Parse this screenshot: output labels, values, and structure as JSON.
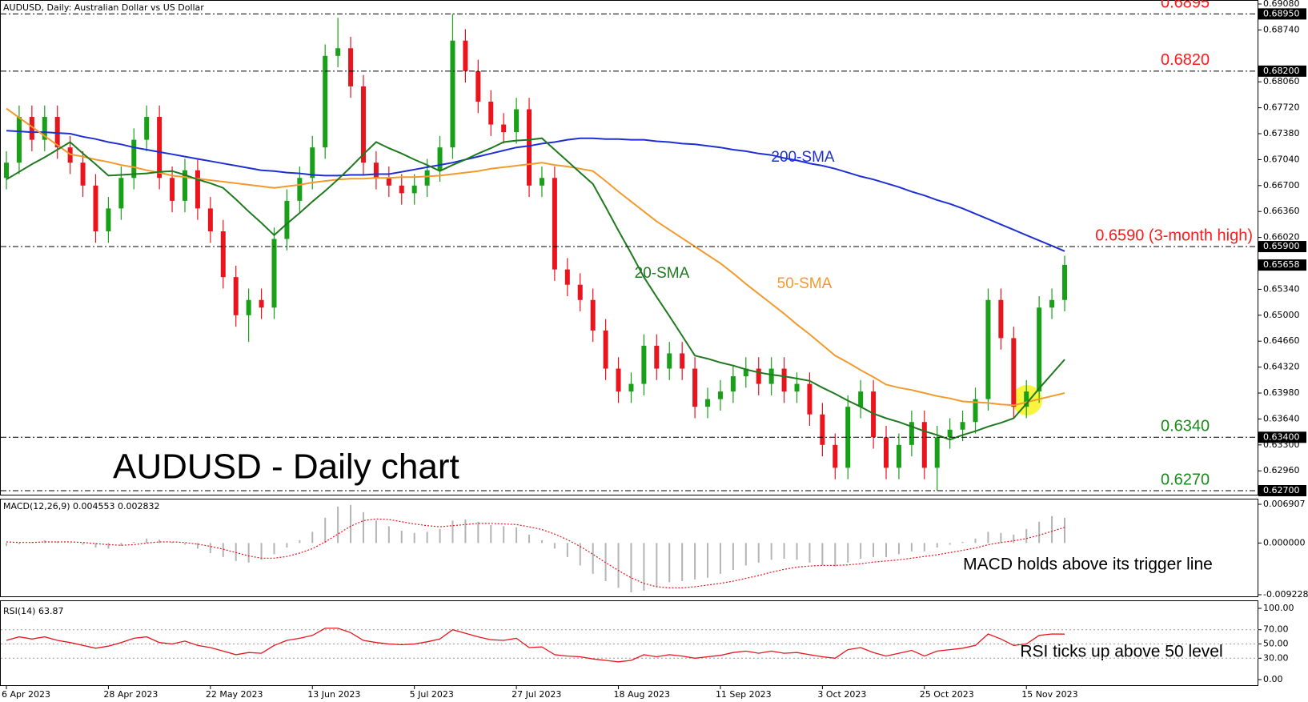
{
  "chart_data": [
    {
      "type": "candlestick",
      "title": "AUDUSD - Daily chart",
      "header": "AUDUSD, Daily:  Australian Dollar vs US Dollar",
      "categories": [
        "6 Apr 2023",
        null,
        null,
        null,
        null,
        null,
        null,
        null,
        "28 Apr 2023",
        null,
        null,
        null,
        null,
        null,
        null,
        null,
        "22 May 2023",
        null,
        null,
        null,
        null,
        null,
        null,
        null,
        "13 Jun 2023",
        null,
        null,
        null,
        null,
        null,
        null,
        null,
        "5 Jul 2023",
        null,
        null,
        null,
        null,
        null,
        null,
        null,
        "27 Jul 2023",
        null,
        null,
        null,
        null,
        null,
        null,
        null,
        "18 Aug 2023",
        null,
        null,
        null,
        null,
        null,
        null,
        null,
        "11 Sep 2023",
        null,
        null,
        null,
        null,
        null,
        null,
        null,
        "3 Oct 2023",
        null,
        null,
        null,
        null,
        null,
        null,
        null,
        "25 Oct 2023",
        null,
        null,
        null,
        null,
        null,
        null,
        null,
        "15 Nov 2023",
        null,
        null,
        null
      ],
      "open": [
        0.668,
        0.67,
        0.676,
        0.673,
        0.676,
        0.672,
        0.67,
        0.667,
        0.661,
        0.664,
        0.668,
        0.673,
        0.676,
        0.668,
        0.665,
        0.669,
        0.664,
        0.661,
        0.655,
        0.65,
        0.652,
        0.651,
        0.66,
        0.665,
        0.668,
        0.672,
        0.684,
        0.685,
        0.68,
        0.67,
        0.668,
        0.667,
        0.666,
        0.667,
        0.669,
        0.672,
        0.686,
        0.682,
        0.678,
        0.675,
        0.674,
        0.677,
        0.667,
        0.668,
        0.656,
        0.654,
        0.652,
        0.648,
        0.643,
        0.64,
        0.641,
        0.646,
        0.643,
        0.645,
        0.643,
        0.638,
        0.639,
        0.64,
        0.642,
        0.643,
        0.641,
        0.643,
        0.64,
        0.641,
        0.637,
        0.633,
        0.63,
        0.638,
        0.64,
        0.634,
        0.63,
        0.633,
        0.636,
        0.63,
        0.634,
        0.635,
        0.636,
        0.639,
        0.652,
        0.647,
        0.638,
        0.64,
        0.651,
        0.652
      ],
      "high": [
        0.6715,
        0.6775,
        0.6775,
        0.6775,
        0.6775,
        0.6735,
        0.6715,
        0.6685,
        0.6655,
        0.6695,
        0.6745,
        0.6775,
        0.6775,
        0.6695,
        0.6705,
        0.6705,
        0.6655,
        0.6625,
        0.6565,
        0.6535,
        0.6535,
        0.6615,
        0.6665,
        0.6695,
        0.6735,
        0.6855,
        0.689,
        0.6865,
        0.6815,
        0.6715,
        0.6695,
        0.6685,
        0.6685,
        0.6705,
        0.6735,
        0.6895,
        0.6875,
        0.6835,
        0.6795,
        0.6765,
        0.6785,
        0.6785,
        0.6695,
        0.6695,
        0.6575,
        0.6555,
        0.6535,
        0.6495,
        0.6445,
        0.6425,
        0.6475,
        0.6475,
        0.6465,
        0.6465,
        0.6445,
        0.6405,
        0.6415,
        0.6435,
        0.6445,
        0.6445,
        0.6445,
        0.6445,
        0.6425,
        0.6425,
        0.6385,
        0.6345,
        0.6395,
        0.6415,
        0.6415,
        0.6355,
        0.6345,
        0.6375,
        0.6375,
        0.6355,
        0.6365,
        0.6375,
        0.6405,
        0.6535,
        0.6535,
        0.6485,
        0.6415,
        0.6525,
        0.6535,
        0.6578
      ],
      "low": [
        0.6665,
        0.6685,
        0.6715,
        0.6715,
        0.6705,
        0.6685,
        0.6655,
        0.6595,
        0.6595,
        0.6625,
        0.6665,
        0.6715,
        0.6665,
        0.6635,
        0.6635,
        0.6625,
        0.6595,
        0.6535,
        0.6485,
        0.6465,
        0.6495,
        0.6495,
        0.6585,
        0.6635,
        0.6665,
        0.6705,
        0.6825,
        0.6785,
        0.6685,
        0.6665,
        0.6655,
        0.6645,
        0.6645,
        0.6655,
        0.6675,
        0.6705,
        0.6805,
        0.6765,
        0.6735,
        0.6725,
        0.6725,
        0.6655,
        0.6655,
        0.6545,
        0.6525,
        0.6505,
        0.6465,
        0.6415,
        0.6385,
        0.6385,
        0.6395,
        0.6415,
        0.6415,
        0.6415,
        0.6365,
        0.6365,
        0.6375,
        0.6385,
        0.6405,
        0.6395,
        0.6395,
        0.6385,
        0.6385,
        0.6355,
        0.6315,
        0.6285,
        0.6285,
        0.6365,
        0.6325,
        0.6285,
        0.6285,
        0.6315,
        0.6285,
        0.627,
        0.6325,
        0.6335,
        0.6345,
        0.6375,
        0.6455,
        0.6365,
        0.6365,
        0.6385,
        0.6495,
        0.6505
      ],
      "close": [
        0.67,
        0.676,
        0.673,
        0.676,
        0.672,
        0.67,
        0.667,
        0.661,
        0.664,
        0.668,
        0.673,
        0.676,
        0.668,
        0.665,
        0.669,
        0.664,
        0.661,
        0.655,
        0.65,
        0.652,
        0.651,
        0.66,
        0.665,
        0.668,
        0.672,
        0.684,
        0.685,
        0.68,
        0.67,
        0.668,
        0.667,
        0.666,
        0.667,
        0.669,
        0.672,
        0.686,
        0.682,
        0.678,
        0.675,
        0.674,
        0.677,
        0.667,
        0.668,
        0.656,
        0.654,
        0.652,
        0.648,
        0.643,
        0.64,
        0.641,
        0.646,
        0.643,
        0.645,
        0.643,
        0.638,
        0.639,
        0.64,
        0.642,
        0.643,
        0.641,
        0.643,
        0.64,
        0.641,
        0.637,
        0.633,
        0.63,
        0.638,
        0.64,
        0.634,
        0.63,
        0.633,
        0.636,
        0.63,
        0.634,
        0.635,
        0.636,
        0.639,
        0.652,
        0.647,
        0.638,
        0.64,
        0.651,
        0.652,
        0.6566
      ],
      "up_color": "#18a018",
      "down_color": "#e8141e",
      "series": [
        {
          "name": "200-SMA",
          "color": "#1e2fd6",
          "values": [
            0.6742,
            0.6741,
            0.674,
            0.674,
            0.6739,
            0.6738,
            0.6734,
            0.6731,
            0.6727,
            0.6724,
            0.672,
            0.6717,
            0.6714,
            0.6711,
            0.6708,
            0.6705,
            0.6702,
            0.6699,
            0.6696,
            0.6693,
            0.669,
            0.6689,
            0.6687,
            0.6686,
            0.6684,
            0.6683,
            0.6683,
            0.6684,
            0.6684,
            0.6685,
            0.6685,
            0.6688,
            0.6691,
            0.6694,
            0.6697,
            0.67,
            0.6704,
            0.6708,
            0.6712,
            0.6716,
            0.672,
            0.6722,
            0.6725,
            0.6727,
            0.673,
            0.6732,
            0.6732,
            0.6731,
            0.6731,
            0.673,
            0.673,
            0.6728,
            0.6727,
            0.6725,
            0.6724,
            0.6722,
            0.672,
            0.6717,
            0.6715,
            0.6712,
            0.671,
            0.6706,
            0.6703,
            0.6699,
            0.6696,
            0.6692,
            0.6687,
            0.6682,
            0.6678,
            0.6673,
            0.6668,
            0.6662,
            0.6657,
            0.6651,
            0.6646,
            0.664,
            0.6633,
            0.6626,
            0.6619,
            0.6612,
            0.6605,
            0.6598,
            0.6591,
            0.6584
          ]
        },
        {
          "name": "50-SMA",
          "color": "#f39a2c",
          "values": [
            0.6771,
            0.6759,
            0.6747,
            0.6735,
            0.6723,
            0.6711,
            0.6708,
            0.6704,
            0.6701,
            0.6697,
            0.6694,
            0.669,
            0.6687,
            0.6683,
            0.6681,
            0.6679,
            0.6677,
            0.6675,
            0.6673,
            0.6671,
            0.6669,
            0.6667,
            0.6669,
            0.6671,
            0.6674,
            0.6676,
            0.6678,
            0.6679,
            0.6679,
            0.668,
            0.668,
            0.6681,
            0.6681,
            0.6682,
            0.6683,
            0.6685,
            0.6687,
            0.6689,
            0.6692,
            0.6694,
            0.6696,
            0.6698,
            0.67,
            0.6697,
            0.6695,
            0.6692,
            0.6689,
            0.6676,
            0.6662,
            0.6649,
            0.6636,
            0.6623,
            0.6612,
            0.6601,
            0.659,
            0.6579,
            0.6568,
            0.6555,
            0.6541,
            0.6528,
            0.6515,
            0.6502,
            0.6488,
            0.6475,
            0.6461,
            0.6447,
            0.6438,
            0.6428,
            0.6419,
            0.6409,
            0.6405,
            0.6402,
            0.6398,
            0.6394,
            0.6391,
            0.6387,
            0.6386,
            0.6385,
            0.6383,
            0.6382,
            0.6386,
            0.639,
            0.6394,
            0.6398
          ]
        },
        {
          "name": "20-SMA",
          "color": "#1f7a1f",
          "values": [
            0.6678,
            0.6688,
            0.6698,
            0.6707,
            0.6717,
            0.6727,
            0.6712,
            0.6698,
            0.6683,
            0.6684,
            0.6685,
            0.6686,
            0.6688,
            0.6689,
            0.6684,
            0.6678,
            0.6673,
            0.6667,
            0.6652,
            0.6636,
            0.6621,
            0.6605,
            0.662,
            0.6634,
            0.6649,
            0.6663,
            0.6678,
            0.6694,
            0.6711,
            0.6727,
            0.6719,
            0.6712,
            0.6704,
            0.6697,
            0.6689,
            0.6697,
            0.6704,
            0.6712,
            0.6719,
            0.6727,
            0.6729,
            0.673,
            0.6732,
            0.6717,
            0.6702,
            0.6687,
            0.6672,
            0.6642,
            0.6611,
            0.6581,
            0.655,
            0.6524,
            0.6499,
            0.6473,
            0.6447,
            0.6443,
            0.6438,
            0.6434,
            0.6429,
            0.6425,
            0.6422,
            0.642,
            0.6417,
            0.6414,
            0.6405,
            0.6397,
            0.6388,
            0.638,
            0.6371,
            0.6365,
            0.636,
            0.6354,
            0.6348,
            0.6343,
            0.6337,
            0.6343,
            0.6348,
            0.6354,
            0.6359,
            0.6365,
            0.6384,
            0.6404,
            0.6423,
            0.6442
          ]
        }
      ],
      "ylim": [
        0.627,
        0.6908
      ],
      "yticks": [
        {
          "value": 0.6908,
          "label": "0.69080"
        },
        {
          "value": 0.6874,
          "label": "0.68740"
        },
        {
          "value": 0.6806,
          "label": "0.68060"
        },
        {
          "value": 0.6772,
          "label": "0.67720"
        },
        {
          "value": 0.6738,
          "label": "0.67380"
        },
        {
          "value": 0.6704,
          "label": "0.67040"
        },
        {
          "value": 0.667,
          "label": "0.66700"
        },
        {
          "value": 0.6636,
          "label": "0.66360"
        },
        {
          "value": 0.6602,
          "label": "0.66020"
        },
        {
          "value": 0.6534,
          "label": "0.65340"
        },
        {
          "value": 0.65,
          "label": "0.65000"
        },
        {
          "value": 0.6466,
          "label": "0.64660"
        },
        {
          "value": 0.6432,
          "label": "0.64320"
        },
        {
          "value": 0.6398,
          "label": "0.63980"
        },
        {
          "value": 0.6364,
          "label": "0.63640"
        },
        {
          "value": 0.633,
          "label": "0.63300"
        },
        {
          "value": 0.6296,
          "label": "0.62960"
        }
      ],
      "levels": [
        {
          "value": 0.6895,
          "label": "0.6895",
          "color": "#ff1a1a",
          "axis_label": "0.68950"
        },
        {
          "value": 0.682,
          "label": "0.6820",
          "color": "#ff1a1a",
          "axis_label": "0.68200"
        },
        {
          "value": 0.659,
          "label": "0.6590 (3-month high)",
          "color": "#ff1a1a",
          "axis_label": "0.65900"
        },
        {
          "value": 0.634,
          "label": "0.6340",
          "color": "#1a8a1a",
          "axis_label": "0.63400"
        },
        {
          "value": 0.627,
          "label": "0.6270",
          "color": "#1a8a1a",
          "axis_label": "0.62700"
        }
      ],
      "last_price": 0.65658
    },
    {
      "type": "macd",
      "header": "MACD(12,26,9) 0.004553 0.002832",
      "annotation": "MACD holds above its trigger line",
      "histogram": {
        "color": "#b4b4b4",
        "values": [
          -0.0005,
          -0.0002,
          0.0002,
          0.0005,
          0.0003,
          0.0,
          -0.0003,
          -0.0008,
          -0.001,
          -0.0005,
          0.0002,
          0.0008,
          0.0006,
          0.0002,
          -0.0003,
          -0.001,
          -0.0018,
          -0.0025,
          -0.0032,
          -0.0035,
          -0.003,
          -0.002,
          -0.0008,
          0.0005,
          0.002,
          0.0045,
          0.0065,
          0.0068,
          0.0055,
          0.004,
          0.003,
          0.0022,
          0.0018,
          0.002,
          0.0025,
          0.004,
          0.0042,
          0.0038,
          0.0032,
          0.003,
          0.0028,
          0.0015,
          0.0005,
          -0.001,
          -0.0025,
          -0.004,
          -0.0055,
          -0.0068,
          -0.008,
          -0.0088,
          -0.0085,
          -0.0078,
          -0.007,
          -0.0068,
          -0.0065,
          -0.0062,
          -0.0055,
          -0.0048,
          -0.004,
          -0.0035,
          -0.003,
          -0.0028,
          -0.003,
          -0.0035,
          -0.004,
          -0.0042,
          -0.0035,
          -0.0028,
          -0.0025,
          -0.0025,
          -0.002,
          -0.0015,
          -0.0015,
          -0.0008,
          -0.0003,
          0.0002,
          0.0008,
          0.002,
          0.0018,
          0.0015,
          0.0025,
          0.0038,
          0.0048,
          0.0045
        ]
      },
      "signal": {
        "color": "#e8141e",
        "values": [
          0.0002,
          0.0001,
          0.0001,
          0.0002,
          0.0002,
          0.0002,
          0.0001,
          -0.0001,
          -0.0003,
          -0.0004,
          -0.0003,
          0.0,
          0.0002,
          0.0002,
          0.0001,
          -0.0002,
          -0.0006,
          -0.0011,
          -0.0017,
          -0.0023,
          -0.0027,
          -0.0027,
          -0.0024,
          -0.0018,
          -0.001,
          0.0002,
          0.0016,
          0.003,
          0.004,
          0.0043,
          0.0042,
          0.0038,
          0.0034,
          0.0031,
          0.0029,
          0.0031,
          0.0033,
          0.0035,
          0.0035,
          0.0034,
          0.0033,
          0.0029,
          0.0024,
          0.0016,
          0.0006,
          -0.0006,
          -0.002,
          -0.0035,
          -0.0049,
          -0.0062,
          -0.0072,
          -0.0078,
          -0.008,
          -0.008,
          -0.0078,
          -0.0075,
          -0.0072,
          -0.0068,
          -0.0063,
          -0.0058,
          -0.0052,
          -0.0047,
          -0.0043,
          -0.0041,
          -0.004,
          -0.004,
          -0.0039,
          -0.0037,
          -0.0034,
          -0.0032,
          -0.003,
          -0.0027,
          -0.0024,
          -0.0021,
          -0.0017,
          -0.0013,
          -0.0009,
          -0.0003,
          0.0001,
          0.0004,
          0.0008,
          0.0014,
          0.0021,
          0.0028
        ]
      },
      "ylim": [
        -0.009228,
        0.006907
      ],
      "yticks": [
        0.006907,
        {
          "value": 0,
          "label": "0.000000"
        },
        -0.009228
      ]
    },
    {
      "type": "line",
      "header": "RSI(14) 63.87",
      "annotation": "RSI ticks up above 50 level",
      "color": "#e8141e",
      "values": [
        55,
        60,
        57,
        60,
        55,
        52,
        48,
        44,
        47,
        52,
        58,
        60,
        52,
        50,
        54,
        48,
        45,
        40,
        35,
        38,
        37,
        48,
        55,
        58,
        62,
        72,
        72,
        66,
        55,
        52,
        50,
        49,
        50,
        53,
        57,
        70,
        65,
        60,
        56,
        55,
        58,
        45,
        46,
        35,
        33,
        32,
        29,
        27,
        25,
        27,
        35,
        32,
        35,
        33,
        30,
        32,
        34,
        38,
        40,
        37,
        40,
        37,
        38,
        35,
        32,
        30,
        42,
        45,
        38,
        33,
        37,
        41,
        33,
        40,
        42,
        44,
        48,
        64,
        57,
        48,
        50,
        62,
        64,
        63.87
      ],
      "ylim": [
        0,
        100
      ],
      "yticks": [
        {
          "value": 100,
          "label": "100.00"
        },
        {
          "value": 70,
          "label": "70.00"
        },
        {
          "value": 50,
          "label": "50.00"
        },
        {
          "value": 30,
          "label": "30.00"
        },
        {
          "value": 0,
          "label": "0.00"
        }
      ]
    }
  ]
}
